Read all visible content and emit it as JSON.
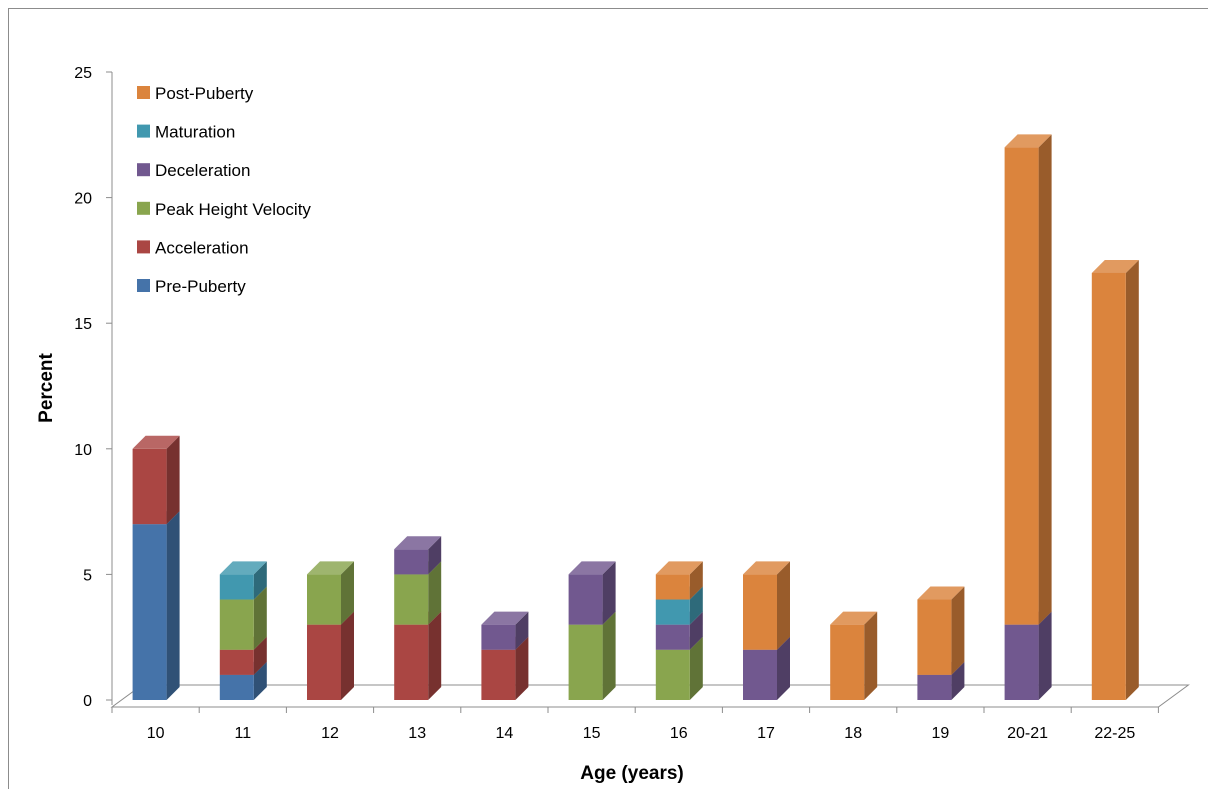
{
  "chart_data": {
    "type": "bar",
    "stacked": true,
    "three_d": true,
    "title": "",
    "xlabel": "Age (years)",
    "ylabel": "Percent",
    "ylim": [
      0,
      25
    ],
    "yticks": [
      0,
      5,
      10,
      15,
      20,
      25
    ],
    "grid": false,
    "legend_position": "top-left",
    "categories": [
      "10",
      "11",
      "12",
      "13",
      "14",
      "15",
      "16",
      "17",
      "18",
      "19",
      "20-21",
      "22-25"
    ],
    "series": [
      {
        "name": "Pre-Puberty",
        "color": "#4573a9",
        "values": [
          7,
          1,
          0,
          0,
          0,
          0,
          0,
          0,
          0,
          0,
          0,
          0
        ]
      },
      {
        "name": "Acceleration",
        "color": "#aa4643",
        "values": [
          3,
          1,
          3,
          3,
          2,
          0,
          0,
          0,
          0,
          0,
          0,
          0
        ]
      },
      {
        "name": "Peak Height Velocity",
        "color": "#89a54e",
        "values": [
          0,
          2,
          2,
          2,
          0,
          3,
          2,
          0,
          0,
          0,
          0,
          0
        ]
      },
      {
        "name": "Deceleration",
        "color": "#71588f",
        "values": [
          0,
          0,
          0,
          1,
          1,
          2,
          1,
          2,
          0,
          1,
          3,
          0
        ]
      },
      {
        "name": "Maturation",
        "color": "#4198af",
        "values": [
          0,
          1,
          0,
          0,
          0,
          0,
          1,
          0,
          0,
          0,
          0,
          0
        ]
      },
      {
        "name": "Post-Puberty",
        "color": "#db843d",
        "values": [
          0,
          0,
          0,
          0,
          0,
          0,
          1,
          3,
          3,
          3,
          19,
          17
        ]
      }
    ]
  }
}
